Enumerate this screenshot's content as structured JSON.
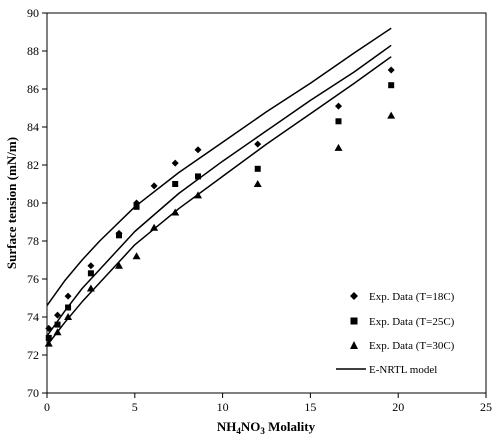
{
  "chart_data": {
    "type": "scatter",
    "title": "",
    "xlabel": "NH4NO3 Molality",
    "xlabel_parts": {
      "pre": "NH",
      "sub1": "4",
      "mid": "NO",
      "sub2": "3",
      "post": " Molality"
    },
    "ylabel": "Surface tension (mN/m)",
    "xlim": [
      0,
      25
    ],
    "ylim": [
      70,
      90
    ],
    "xticks": [
      0,
      5,
      10,
      15,
      20,
      25
    ],
    "yticks": [
      70,
      72,
      74,
      76,
      78,
      80,
      82,
      84,
      86,
      88,
      90
    ],
    "grid": false,
    "legend_position": "bottom-right",
    "series": [
      {
        "name": "Exp. Data (T=18C)",
        "marker": "diamond",
        "x": [
          0.1,
          0.6,
          1.2,
          2.5,
          4.1,
          5.1,
          6.1,
          7.3,
          8.6,
          12.0,
          16.6,
          19.6
        ],
        "y": [
          73.4,
          74.1,
          75.1,
          76.7,
          78.4,
          80.0,
          80.9,
          82.1,
          82.8,
          83.1,
          85.1,
          87.0
        ]
      },
      {
        "name": "Exp. Data (T=25C)",
        "marker": "square",
        "x": [
          0.1,
          0.6,
          1.2,
          2.5,
          4.1,
          5.1,
          7.3,
          8.6,
          12.0,
          16.6,
          19.6
        ],
        "y": [
          72.9,
          73.6,
          74.5,
          76.3,
          78.3,
          79.8,
          81.0,
          81.4,
          81.8,
          84.3,
          86.2
        ]
      },
      {
        "name": "Exp. Data (T=30C)",
        "marker": "triangle",
        "x": [
          0.1,
          0.6,
          1.2,
          2.5,
          4.1,
          5.1,
          6.1,
          7.3,
          8.6,
          12.0,
          16.6,
          19.6
        ],
        "y": [
          72.6,
          73.2,
          74.0,
          75.5,
          76.7,
          77.2,
          78.7,
          79.5,
          80.4,
          81.0,
          82.9,
          84.6
        ]
      }
    ],
    "model": {
      "name": "E-NRTL model",
      "lines": [
        {
          "x": [
            0,
            1,
            2,
            3,
            5,
            7.5,
            10,
            12.5,
            15,
            17.5,
            19.6
          ],
          "y": [
            74.6,
            75.9,
            77.0,
            78.0,
            79.8,
            81.6,
            83.2,
            84.8,
            86.3,
            87.9,
            89.2
          ]
        },
        {
          "x": [
            0,
            1,
            2,
            3,
            5,
            7.5,
            10,
            12.5,
            15,
            17.5,
            19.6
          ],
          "y": [
            73.0,
            74.3,
            75.5,
            76.5,
            78.5,
            80.5,
            82.2,
            83.8,
            85.4,
            86.9,
            88.3
          ]
        },
        {
          "x": [
            0,
            1,
            2,
            3,
            5,
            7.5,
            10,
            12.5,
            15,
            17.5,
            19.6
          ],
          "y": [
            72.5,
            73.7,
            74.8,
            75.8,
            77.8,
            79.7,
            81.4,
            83.1,
            84.7,
            86.3,
            87.7
          ]
        }
      ]
    }
  }
}
